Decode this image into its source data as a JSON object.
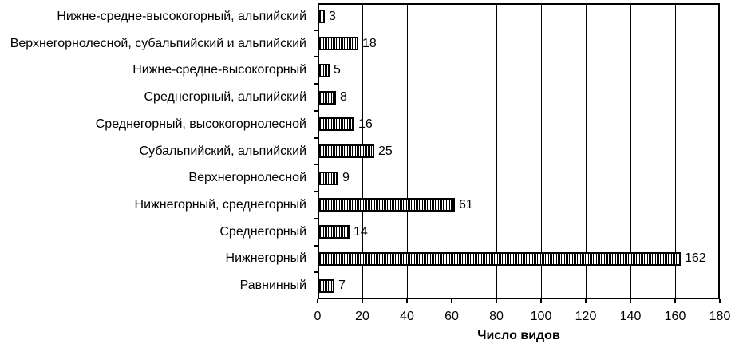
{
  "chart_data": {
    "type": "bar",
    "orientation": "horizontal",
    "title": "",
    "xlabel": "Число видов",
    "categories": [
      "Нижне-средне-высокогорный, альпийский",
      "Верхнегорнолесной, субальпийский и альпийский",
      "Нижне-средне-высокогорный",
      "Среднегорный, альпийский",
      "Среднегорный, высокогорнолесной",
      "Субальпийский, альпийский",
      "Верхнегорнолесной",
      "Нижнегорный, среднегорный",
      "Среднегорный",
      "Нижнегорный",
      "Равнинный"
    ],
    "values": [
      3,
      18,
      5,
      8,
      16,
      25,
      9,
      61,
      14,
      162,
      7
    ],
    "x_ticks": [
      0,
      20,
      40,
      60,
      80,
      100,
      120,
      140,
      160,
      180
    ],
    "xlim": [
      0,
      180
    ],
    "grid": true,
    "legend": "none",
    "bar_style": "vertical-hatch",
    "colors": {
      "foreground": "#000000",
      "background": "#ffffff",
      "bar_stripe": "#000000",
      "bar_fill": "#ffffff"
    }
  }
}
